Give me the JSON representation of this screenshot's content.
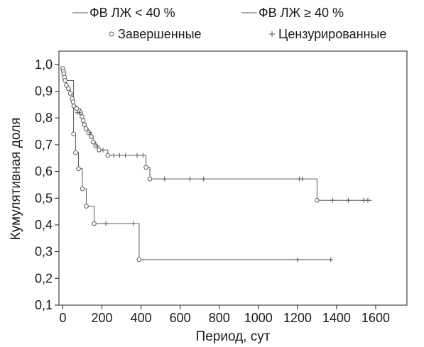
{
  "chart_data": {
    "type": "line",
    "title": "",
    "xlabel": "Период, сут",
    "ylabel": "Кумулятивная доля",
    "xlim": [
      -20,
      1760
    ],
    "ylim": [
      0.1,
      1.05
    ],
    "x_ticks": [
      0,
      200,
      400,
      600,
      800,
      1000,
      1200,
      1400,
      1600
    ],
    "x_tick_labels": [
      "0",
      "200",
      "400",
      "600",
      "800",
      "1000",
      "1200",
      "1400",
      "1600"
    ],
    "y_ticks": [
      0.1,
      0.2,
      0.3,
      0.4,
      0.5,
      0.6,
      0.7,
      0.8,
      0.9,
      1.0
    ],
    "y_tick_labels": [
      "0,1",
      "0,2",
      "0,3",
      "0,4",
      "0,5",
      "0,6",
      "0,7",
      "0,8",
      "0,9",
      "1,0"
    ],
    "grid": false,
    "legend": {
      "placement": "top",
      "entries": [
        {
          "label": "ФВ ЛЖ < 40 %",
          "marker": "line"
        },
        {
          "label": "ФВ ЛЖ ≥ 40 %",
          "marker": "line"
        },
        {
          "label": "Завершенные",
          "marker": "circle"
        },
        {
          "label": "Цензурированные",
          "marker": "plus"
        }
      ]
    },
    "series": [
      {
        "name": "ФВ ЛЖ < 40 %",
        "color": "#5a5a5a",
        "step_x": [
          0,
          55,
          65,
          80,
          100,
          120,
          160,
          390,
          1380
        ],
        "step_y": [
          0.94,
          0.74,
          0.67,
          0.61,
          0.535,
          0.47,
          0.405,
          0.27,
          0.27
        ],
        "events": [
          [
            55,
            0.74
          ],
          [
            65,
            0.67
          ],
          [
            80,
            0.61
          ],
          [
            100,
            0.535
          ],
          [
            120,
            0.47
          ],
          [
            160,
            0.405
          ],
          [
            390,
            0.27
          ]
        ],
        "censored": [
          [
            220,
            0.405
          ],
          [
            360,
            0.405
          ],
          [
            1200,
            0.27
          ],
          [
            1370,
            0.27
          ]
        ]
      },
      {
        "name": "ФВ ЛЖ ≥ 40 %",
        "color": "#5a5a5a",
        "step_x": [
          0,
          3,
          5,
          8,
          12,
          18,
          28,
          38,
          48,
          52,
          56,
          70,
          92,
          98,
          104,
          110,
          118,
          132,
          145,
          155,
          168,
          185,
          230,
          425,
          445,
          1300,
          1580
        ],
        "step_y": [
          0.985,
          0.975,
          0.965,
          0.952,
          0.94,
          0.922,
          0.91,
          0.892,
          0.872,
          0.86,
          0.845,
          0.835,
          0.82,
          0.805,
          0.79,
          0.775,
          0.76,
          0.745,
          0.73,
          0.71,
          0.695,
          0.68,
          0.66,
          0.615,
          0.572,
          0.492,
          0.492
        ],
        "events": [
          [
            0,
            0.985
          ],
          [
            3,
            0.975
          ],
          [
            5,
            0.965
          ],
          [
            8,
            0.952
          ],
          [
            12,
            0.94
          ],
          [
            18,
            0.922
          ],
          [
            28,
            0.91
          ],
          [
            38,
            0.892
          ],
          [
            48,
            0.872
          ],
          [
            52,
            0.86
          ],
          [
            56,
            0.845
          ],
          [
            70,
            0.835
          ],
          [
            92,
            0.82
          ],
          [
            98,
            0.805
          ],
          [
            104,
            0.79
          ],
          [
            110,
            0.775
          ],
          [
            118,
            0.76
          ],
          [
            132,
            0.745
          ],
          [
            145,
            0.73
          ],
          [
            155,
            0.71
          ],
          [
            168,
            0.695
          ],
          [
            185,
            0.68
          ],
          [
            230,
            0.66
          ],
          [
            425,
            0.615
          ],
          [
            445,
            0.572
          ],
          [
            1300,
            0.492
          ]
        ],
        "censored": [
          [
            75,
            0.82
          ],
          [
            85,
            0.82
          ],
          [
            140,
            0.745
          ],
          [
            175,
            0.695
          ],
          [
            205,
            0.68
          ],
          [
            260,
            0.66
          ],
          [
            290,
            0.66
          ],
          [
            320,
            0.66
          ],
          [
            380,
            0.66
          ],
          [
            410,
            0.66
          ],
          [
            520,
            0.572
          ],
          [
            650,
            0.572
          ],
          [
            720,
            0.572
          ],
          [
            1210,
            0.572
          ],
          [
            1225,
            0.572
          ],
          [
            1380,
            0.492
          ],
          [
            1460,
            0.492
          ],
          [
            1540,
            0.492
          ],
          [
            1560,
            0.492
          ]
        ]
      }
    ]
  }
}
